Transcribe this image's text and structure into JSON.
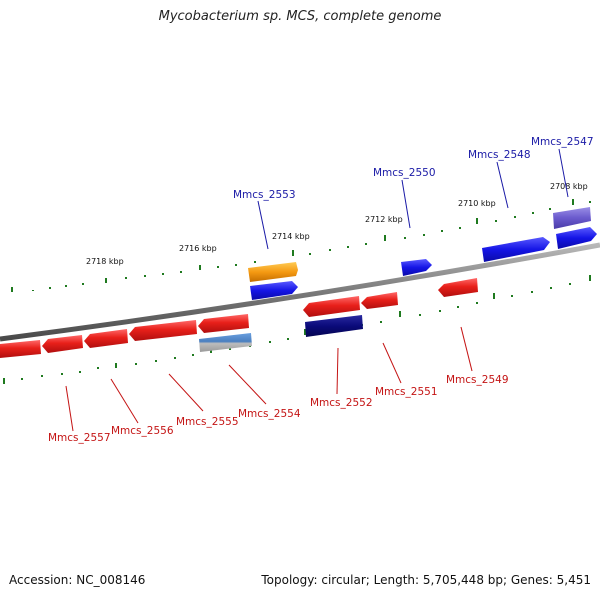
{
  "title": "Mycobacterium sp. MCS, complete genome",
  "footer": {
    "accession": "Accession: NC_008146",
    "stats": "Topology: circular; Length: 5,705,448 bp; Genes: 5,451"
  },
  "colors": {
    "backbone": "#808080",
    "tick": "#1f7a1f",
    "forward_gene": "#1a1ae0",
    "reverse_gene": "#e01414",
    "label_forward": "#1a1aa6",
    "label_reverse": "#c41414"
  },
  "kbp_labels": [
    "2718 kbp",
    "2716 kbp",
    "2714 kbp",
    "2712 kbp",
    "2710 kbp",
    "2708 kbp"
  ],
  "genes_forward": [
    {
      "name": "Mmcs_2553",
      "color": "#f08c0a"
    },
    {
      "name": "Mmcs_2553b",
      "color": "#1a1ae0"
    },
    {
      "name": "Mmcs_2550",
      "color": "#1a1ae0"
    },
    {
      "name": "Mmcs_2548",
      "color": "#1a1ae0"
    },
    {
      "name": "Mmcs_2547",
      "color": "#6a5acd"
    },
    {
      "name": "Mmcs_2547b",
      "color": "#1a1ae0"
    }
  ],
  "genes_reverse": [
    {
      "name": "Mmcs_2557",
      "color": "#e01414"
    },
    {
      "name": "Mmcs_2556",
      "color": "#e01414"
    },
    {
      "name": "Mmcs_2555",
      "color": "#e01414"
    },
    {
      "name": "Mmcs_2554",
      "color": "#e01414"
    },
    {
      "name": "Mmcs_2554b",
      "color": "#4a7fbf"
    },
    {
      "name": "Mmcs_2552",
      "color": "#e01414"
    },
    {
      "name": "Mmcs_2552b",
      "color": "#0a0a7a"
    },
    {
      "name": "Mmcs_2551",
      "color": "#e01414"
    },
    {
      "name": "Mmcs_2549",
      "color": "#e01414"
    }
  ],
  "gene_labels_forward": [
    "Mmcs_2553",
    "Mmcs_2550",
    "Mmcs_2548",
    "Mmcs_2547"
  ],
  "gene_labels_reverse": [
    "Mmcs_2557",
    "Mmcs_2556",
    "Mmcs_2555",
    "Mmcs_2554",
    "Mmcs_2552",
    "Mmcs_2551",
    "Mmcs_2549"
  ]
}
